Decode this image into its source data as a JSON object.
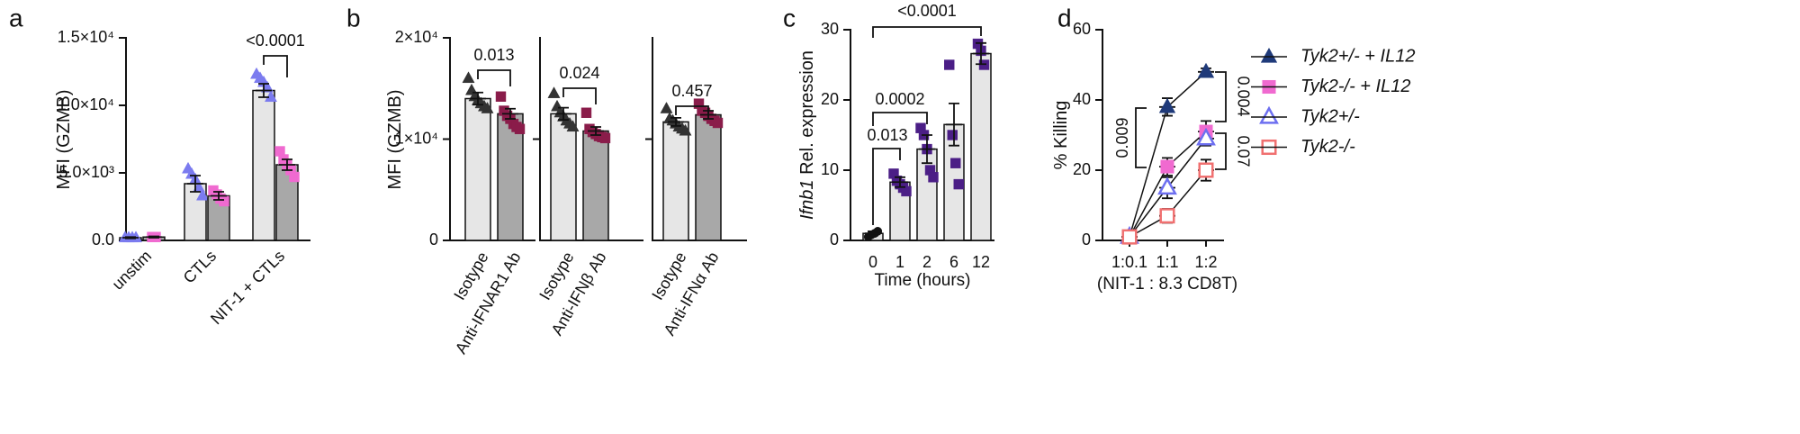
{
  "chart_data": [
    {
      "type": "bar",
      "panel": "a",
      "ylabel": "MFI (GZMB)",
      "categories": [
        "unstim",
        "CTLs",
        "NIT-1 + CTLs"
      ],
      "series": [
        {
          "color": "#e6e6e6",
          "point_color": "#7b7bef",
          "marker": "triangle",
          "values": [
            200,
            4200,
            11100
          ],
          "errors": [
            50,
            600,
            500
          ],
          "points": [
            [
              200,
              200,
              200,
              200
            ],
            [
              5300,
              4900,
              4500,
              3900,
              3300
            ],
            [
              12300,
              12000,
              11700,
              11300,
              10600
            ]
          ]
        },
        {
          "color": "#a8a8a8",
          "point_color": "#f06ad0",
          "marker": "square",
          "values": [
            250,
            3300,
            5600
          ],
          "errors": [
            50,
            300,
            400
          ],
          "points": [
            [
              250,
              250
            ],
            [
              3700,
              3400,
              3100,
              2900
            ],
            [
              6600,
              6000,
              5600,
              5200,
              4700
            ]
          ]
        }
      ],
      "ylim": [
        0,
        15000
      ],
      "yticks": [
        {
          "value": 0,
          "label": "0.0"
        },
        {
          "value": 5000,
          "label": "5.0×10³"
        },
        {
          "value": 10000,
          "label": "1.0×10⁴"
        },
        {
          "value": 15000,
          "label": "1.5×10⁴"
        }
      ],
      "annotations": [
        "<0.0001"
      ]
    },
    {
      "type": "bar",
      "panel": "b",
      "ylabel": "MFI (GZMB)",
      "categories": [
        "Isotype",
        "Anti-IFNAR1 Ab"
      ],
      "colors": [
        "#e6e6e6",
        "#a8a8a8"
      ],
      "point_colors": [
        "#333333",
        "#8a1c4a"
      ],
      "markers": [
        "triangle",
        "square"
      ],
      "values": [
        14000,
        12500
      ],
      "errors": [
        600,
        500
      ],
      "points": [
        [
          16000,
          14800,
          14200,
          13800,
          13500,
          13200,
          13000
        ],
        [
          14200,
          12800,
          12300,
          12000,
          11500,
          11200,
          11000
        ]
      ],
      "ylim": [
        0,
        20000
      ],
      "yticks": [
        0,
        {
          "value": 10000,
          "label": "1×10⁴"
        },
        {
          "value": 20000,
          "label": "2×10⁴"
        }
      ],
      "annotations": [
        "0.013"
      ]
    },
    {
      "type": "bar",
      "categories": [
        "Isotype",
        "Anti-IFNβ Ab"
      ],
      "colors": [
        "#e6e6e6",
        "#a8a8a8"
      ],
      "point_colors": [
        "#333333",
        "#8a1c4a"
      ],
      "markers": [
        "triangle",
        "square"
      ],
      "values": [
        12500,
        10800
      ],
      "errors": [
        600,
        400
      ],
      "points": [
        [
          14500,
          13200,
          12600,
          12200,
          11800,
          11500,
          11200
        ],
        [
          12600,
          11000,
          10700,
          10500,
          10300,
          10200,
          10100
        ]
      ],
      "ylim": [
        0,
        20000
      ],
      "yticks": [
        10000
      ],
      "annotations": [
        "0.024"
      ]
    },
    {
      "type": "bar",
      "categories": [
        "Isotype",
        "Anti-IFNα Ab"
      ],
      "colors": [
        "#e6e6e6",
        "#a8a8a8"
      ],
      "point_colors": [
        "#333333",
        "#8a1c4a"
      ],
      "markers": [
        "triangle",
        "square"
      ],
      "values": [
        11700,
        12400
      ],
      "errors": [
        400,
        400
      ],
      "points": [
        [
          13000,
          12000,
          11800,
          11500,
          11200,
          11000,
          10800
        ],
        [
          13500,
          12800,
          12600,
          12300,
          12000,
          11800,
          11600
        ]
      ],
      "ylim": [
        0,
        20000
      ],
      "yticks": [
        10000
      ],
      "annotations": [
        "0.457"
      ]
    },
    {
      "type": "bar",
      "panel": "c",
      "ylabel_gene": "Ifnb1",
      "ylabel": "Rel. expression",
      "xlabel": "Time (hours)",
      "categories": [
        "0",
        "1",
        "2",
        "6",
        "12"
      ],
      "color": "#e6e6e6",
      "point_colors": [
        "#111111",
        "#4b1e86",
        "#4b1e86",
        "#4b1e86",
        "#4b1e86"
      ],
      "markers": [
        "circle",
        "square",
        "square",
        "square",
        "square"
      ],
      "values": [
        1,
        8.3,
        13,
        16.5,
        26.6
      ],
      "errors": [
        0.3,
        0.7,
        2,
        3,
        1.5
      ],
      "points": [
        [
          0.5,
          0.8,
          1,
          1.3
        ],
        [
          9.5,
          8.5,
          8,
          7.5,
          7
        ],
        [
          16,
          15,
          13,
          10,
          9
        ],
        [
          25,
          15,
          11,
          8
        ],
        [
          28,
          27,
          25
        ]
      ],
      "ylim": [
        0,
        30
      ],
      "yticks": [
        0,
        10,
        20,
        30
      ],
      "annotations": [
        "0.013",
        "0.0002",
        "<0.0001"
      ]
    },
    {
      "type": "line",
      "panel": "d",
      "ylabel": "% Killing",
      "xlabel": "(NIT-1 : 8.3 CD8T)",
      "categories": [
        "1:0.1",
        "1:1",
        "1:2"
      ],
      "series": [
        {
          "name": "Tyk2+/- + IL12",
          "color": "#1f3a7a",
          "marker": "triangle",
          "filled": true,
          "values": [
            1,
            38,
            48
          ],
          "errors": [
            0.5,
            2.5,
            1
          ]
        },
        {
          "name": "Tyk2-/- + IL12",
          "color": "#f06ad0",
          "marker": "square",
          "filled": true,
          "values": [
            1,
            21,
            31
          ],
          "errors": [
            0.5,
            2.5,
            3
          ]
        },
        {
          "name": "Tyk2+/-",
          "color": "#6d6ff0",
          "marker": "triangle",
          "filled": false,
          "values": [
            1,
            15,
            29
          ],
          "errors": [
            0.5,
            3,
            2
          ]
        },
        {
          "name": "Tyk2-/-",
          "color": "#f07070",
          "marker": "square",
          "filled": false,
          "values": [
            1,
            7,
            20
          ],
          "errors": [
            0.5,
            2,
            3
          ]
        }
      ],
      "ylim": [
        0,
        60
      ],
      "yticks": [
        0,
        20,
        40,
        60
      ],
      "annotations": [
        "0.009",
        "0.004",
        "0.07"
      ]
    }
  ]
}
